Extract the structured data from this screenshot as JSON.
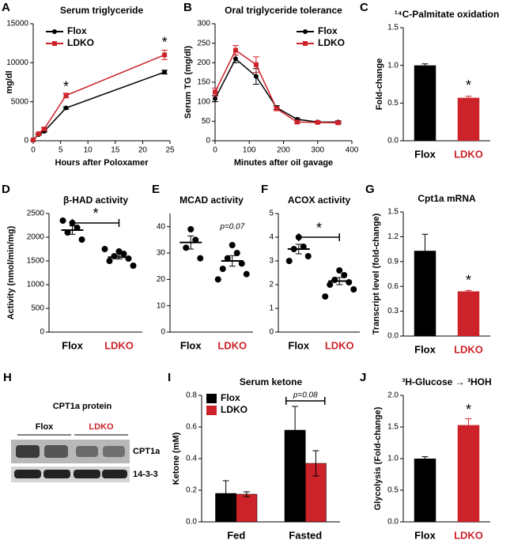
{
  "chart_data": [
    {
      "type": "line",
      "panel": "A",
      "title": "Serum triglyceride",
      "xlabel": "Hours after Poloxamer",
      "ylabel": "mg/dl",
      "x": [
        0,
        1,
        2,
        6,
        24
      ],
      "xlim": [
        0,
        25
      ],
      "xticks": [
        0,
        5,
        10,
        15,
        20,
        25
      ],
      "ylim": [
        0,
        15000
      ],
      "yticks": [
        0,
        5000,
        10000,
        15000
      ],
      "legend": "upper left",
      "series": [
        {
          "name": "Flox",
          "color": "#000000",
          "marker": "circle",
          "values": [
            100,
            800,
            1200,
            4200,
            8800
          ],
          "errors": [
            0,
            50,
            80,
            150,
            250
          ]
        },
        {
          "name": "LDKO",
          "color": "#cc2229",
          "marker": "square",
          "values": [
            100,
            900,
            1500,
            5800,
            11000
          ],
          "errors": [
            0,
            80,
            150,
            300,
            600
          ]
        }
      ],
      "annotations": [
        "*",
        "*"
      ]
    },
    {
      "type": "line",
      "panel": "B",
      "title": "Oral triglyceride tolerance",
      "xlabel": "Minutes after oil gavage",
      "ylabel": "Serum TG (mg/dl)",
      "x": [
        0,
        60,
        120,
        180,
        240,
        300,
        360
      ],
      "xlim": [
        0,
        400
      ],
      "xticks": [
        0,
        100,
        200,
        300,
        400
      ],
      "ylim": [
        0,
        300
      ],
      "yticks": [
        0,
        50,
        100,
        150,
        200,
        250,
        300
      ],
      "legend": "upper right",
      "series": [
        {
          "name": "Flox",
          "color": "#000000",
          "marker": "circle",
          "values": [
            108,
            210,
            165,
            85,
            55,
            48,
            48
          ],
          "errors": [
            8,
            10,
            20,
            5,
            3,
            2,
            3
          ]
        },
        {
          "name": "LDKO",
          "color": "#cc2229",
          "marker": "square",
          "values": [
            125,
            232,
            195,
            82,
            48,
            47,
            46
          ],
          "errors": [
            10,
            12,
            20,
            5,
            3,
            2,
            3
          ]
        }
      ],
      "annotations": []
    },
    {
      "type": "bar",
      "panel": "C",
      "title": "¹⁴C-Palmitate oxidation",
      "ylabel": "Fold-change",
      "categories": [
        "Flox",
        "LDKO"
      ],
      "values": [
        1.0,
        0.57
      ],
      "errors": [
        0.02,
        0.02
      ],
      "colors": [
        "#000000",
        "#cc2229"
      ],
      "ylim": [
        0,
        1.5
      ],
      "yticks": [
        {
          "value": 0,
          "label": "0.0"
        },
        0.5,
        {
          "value": 1,
          "label": "1.0"
        },
        1.5
      ],
      "annotations": [
        "*"
      ]
    },
    {
      "type": "dot",
      "panel": "D",
      "title": "β-HAD activity",
      "ylabel": "Activity (nmol/min/mg)",
      "categories": [
        "Flox",
        "LDKO"
      ],
      "colors": [
        "#000000",
        "#cc2229"
      ],
      "points": [
        [
          2300,
          2200,
          2100,
          1950,
          2350
        ],
        [
          1700,
          1650,
          1600,
          1550,
          1500,
          1400,
          1750
        ]
      ],
      "means": [
        2150,
        1580
      ],
      "errors": [
        90,
        40
      ],
      "ylim": [
        0,
        2500
      ],
      "yticks": [
        0,
        500,
        1000,
        1500,
        2000,
        2500
      ],
      "annotations": [
        "*"
      ]
    },
    {
      "type": "dot",
      "panel": "E",
      "title": "MCAD activity",
      "categories": [
        "Flox",
        "LDKO"
      ],
      "colors": [
        "#000000",
        "#cc2229"
      ],
      "points": [
        [
          39,
          35,
          32,
          28
        ],
        [
          33,
          30,
          28,
          26,
          24,
          22,
          20
        ]
      ],
      "means": [
        34,
        27
      ],
      "errors": [
        2.5,
        2
      ],
      "ylim": [
        0,
        45
      ],
      "yticks": [
        0,
        10,
        20,
        30,
        40
      ],
      "annotations": [
        "p=0.07"
      ]
    },
    {
      "type": "dot",
      "panel": "F",
      "title": "ACOX activity",
      "categories": [
        "Flox",
        "LDKO"
      ],
      "colors": [
        "#000000",
        "#cc2229"
      ],
      "points": [
        [
          4.0,
          3.6,
          3.5,
          3.2,
          3.0
        ],
        [
          2.6,
          2.4,
          2.2,
          2.1,
          2.0,
          1.8,
          1.5
        ]
      ],
      "means": [
        3.5,
        2.15
      ],
      "errors": [
        0.2,
        0.15
      ],
      "ylim": [
        0,
        5
      ],
      "yticks": [
        0,
        1,
        2,
        3,
        4,
        5
      ],
      "annotations": [
        "*"
      ]
    },
    {
      "type": "bar",
      "panel": "G",
      "title": "Cpt1a mRNA",
      "ylabel": "Transcript level (fold-change)",
      "categories": [
        "Flox",
        "LDKO"
      ],
      "values": [
        1.03,
        0.54
      ],
      "errors": [
        0.2,
        0.01
      ],
      "colors": [
        "#000000",
        "#cc2229"
      ],
      "ylim": [
        0,
        1.5
      ],
      "yticks": [
        {
          "value": 0,
          "label": "0.0"
        },
        0.3,
        0.6,
        0.9,
        1.2,
        1.5
      ],
      "annotations": [
        "*"
      ]
    },
    {
      "type": "bar",
      "panel": "I",
      "title": "Serum ketone",
      "ylabel": "Ketone (mM)",
      "categories": [
        "Fed",
        "Fasted"
      ],
      "legend": "upper left",
      "series": [
        {
          "name": "Flox",
          "color": "#000000",
          "values": [
            0.18,
            0.58
          ],
          "errors": [
            0.08,
            0.15
          ]
        },
        {
          "name": "LDKO",
          "color": "#cc2229",
          "values": [
            0.175,
            0.37
          ],
          "errors": [
            0.015,
            0.08
          ]
        }
      ],
      "ylim": [
        0,
        0.8
      ],
      "yticks": [
        {
          "value": 0,
          "label": "0.0"
        },
        0.2,
        0.4,
        0.6,
        0.8
      ],
      "annotations": [
        "p=0.08"
      ]
    },
    {
      "type": "bar",
      "panel": "J",
      "title": "³H-Glucose → ³HOH",
      "ylabel": "Glycolysis (Fold-change)",
      "categories": [
        "Flox",
        "LDKO"
      ],
      "values": [
        1.0,
        1.53
      ],
      "errors": [
        0.03,
        0.1
      ],
      "colors": [
        "#000000",
        "#cc2229"
      ],
      "ylim": [
        0,
        2.0
      ],
      "yticks": [
        {
          "value": 0,
          "label": "0.0"
        },
        0.5,
        {
          "value": 1,
          "label": "1.0"
        },
        1.5,
        {
          "value": 2,
          "label": "2.0"
        }
      ],
      "annotations": [
        "*"
      ]
    }
  ],
  "blot": {
    "panel": "H",
    "title": "CPT1a protein",
    "groups": [
      "Flox",
      "LDKO"
    ],
    "rows": [
      "CPT1a",
      "14-3-3"
    ]
  }
}
